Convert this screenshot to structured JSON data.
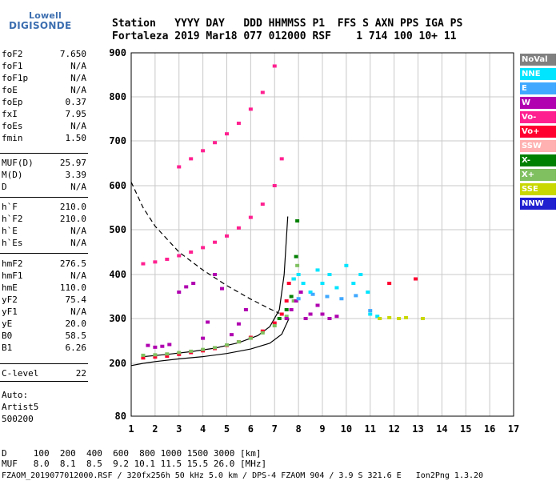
{
  "logo": {
    "line1": "Lowell",
    "line2": "DIGISONDE"
  },
  "header": {
    "line1": "Station   YYYY DAY   DDD HHMMSS P1  FFS S AXN PPS IGA PS",
    "line2": "Fortaleza 2019 Mar18 077 012000 RSF    1 714 100 10+ 11"
  },
  "params_group1": [
    {
      "name": "foF2",
      "value": "7.650"
    },
    {
      "name": "foF1",
      "value": "N/A"
    },
    {
      "name": "foF1p",
      "value": "N/A"
    },
    {
      "name": "foE",
      "value": "N/A"
    },
    {
      "name": "foEp",
      "value": "0.37"
    },
    {
      "name": "fxI",
      "value": "7.95"
    },
    {
      "name": "foEs",
      "value": "N/A"
    },
    {
      "name": "fmin",
      "value": "1.50"
    }
  ],
  "params_group2": [
    {
      "name": "MUF(D)",
      "value": "25.97"
    },
    {
      "name": "M(D)",
      "value": "3.39"
    },
    {
      "name": "D",
      "value": "N/A"
    }
  ],
  "params_group3": [
    {
      "name": "h`F",
      "value": "210.0"
    },
    {
      "name": "h`F2",
      "value": "210.0"
    },
    {
      "name": "h`E",
      "value": "N/A"
    },
    {
      "name": "h`Es",
      "value": "N/A"
    }
  ],
  "params_group4": [
    {
      "name": "hmF2",
      "value": "276.5"
    },
    {
      "name": "hmF1",
      "value": "N/A"
    },
    {
      "name": "hmE",
      "value": "110.0"
    },
    {
      "name": "yF2",
      "value": "75.4"
    },
    {
      "name": "yF1",
      "value": "N/A"
    },
    {
      "name": "yE",
      "value": "20.0"
    },
    {
      "name": "B0",
      "value": "58.5"
    },
    {
      "name": "B1",
      "value": "6.26"
    }
  ],
  "params_group5": [
    {
      "name": "C-level",
      "value": "22"
    }
  ],
  "auto": {
    "line1": "Auto:",
    "line2": "Artist5",
    "line3": "500200"
  },
  "bottom": {
    "d_line": "D     100  200  400  600  800 1000 1500 3000 [km]",
    "muf_line": "MUF   8.0  8.1  8.5  9.2 10.1 11.5 15.5 26.0 [MHz]",
    "footer": "FZAOM_2019077012000.RSF / 320fx256h 50 kHz 5.0 km / DPS-4 FZAOM 904 / 3.9 S 321.6 E   Ion2Png 1.3.20"
  },
  "legend": [
    {
      "label": "NoVal",
      "color": "#808080",
      "text": "#ffffff"
    },
    {
      "label": "NNE",
      "color": "#00e5ff",
      "text": "#ffffff"
    },
    {
      "label": "E",
      "color": "#40a8ff",
      "text": "#ffffff"
    },
    {
      "label": "W",
      "color": "#b000b0",
      "text": "#ffffff"
    },
    {
      "label": "Vo-",
      "color": "#ff2090",
      "text": "#ffffff"
    },
    {
      "label": "Vo+",
      "color": "#ff0030",
      "text": "#ffffff"
    },
    {
      "label": "SSW",
      "color": "#ffb0b0",
      "text": "#ffffff"
    },
    {
      "label": "X-",
      "color": "#008000",
      "text": "#ffffff"
    },
    {
      "label": "X+",
      "color": "#80c060",
      "text": "#ffffff"
    },
    {
      "label": "SSE",
      "color": "#c8d800",
      "text": "#ffffff"
    },
    {
      "label": "NNW",
      "color": "#2020d0",
      "text": "#ffffff"
    }
  ],
  "chart_data": {
    "type": "scatter",
    "xlabel": "",
    "ylabel": "",
    "xlim": [
      1,
      17
    ],
    "ylim": [
      80,
      900
    ],
    "x_ticks": [
      1,
      2,
      3,
      4,
      5,
      6,
      7,
      8,
      9,
      10,
      11,
      12,
      13,
      14,
      15,
      16,
      17
    ],
    "y_ticks": [
      80,
      200,
      300,
      400,
      500,
      600,
      700,
      800,
      900
    ],
    "x_tick_labels": [
      "1",
      "2",
      "3",
      "4",
      "5",
      "6",
      "7",
      "8",
      "9",
      "10",
      "11",
      "12",
      "13",
      "14",
      "15",
      "16",
      "17"
    ],
    "y_tick_labels": [
      "80",
      "200",
      "300",
      "400",
      "500",
      "600",
      "700",
      "800",
      "900"
    ],
    "grid": true,
    "series": [
      {
        "name": "Vo+",
        "color": "#ff0030",
        "x": [
          1.5,
          2.0,
          2.5,
          3.0,
          3.5,
          4.0,
          4.5,
          5.0,
          5.5,
          6.0,
          6.5,
          7.0,
          7.3,
          7.5,
          7.6
        ],
        "y": [
          212,
          214,
          216,
          220,
          224,
          228,
          233,
          240,
          248,
          258,
          272,
          290,
          310,
          340,
          380
        ]
      },
      {
        "name": "X+",
        "color": "#80c060",
        "x": [
          1.5,
          2.0,
          2.5,
          3.0,
          3.5,
          4.0,
          4.5,
          5.0,
          5.5,
          6.0,
          6.5,
          7.0,
          7.5,
          7.8,
          7.95
        ],
        "y": [
          218,
          219,
          221,
          224,
          227,
          231,
          235,
          241,
          248,
          256,
          268,
          284,
          305,
          340,
          420
        ]
      },
      {
        "name": "X-",
        "color": "#008000",
        "x": [
          7.2,
          7.5,
          7.7,
          7.8,
          7.9,
          7.95
        ],
        "y": [
          300,
          320,
          350,
          390,
          440,
          520
        ]
      },
      {
        "name": "Vo- (2nd hop)",
        "color": "#ff2090",
        "x": [
          1.5,
          2.0,
          2.5,
          3.0,
          3.5,
          4.0,
          4.5,
          5.0,
          5.5,
          6.0,
          6.5,
          7.0,
          7.3
        ],
        "y": [
          424,
          428,
          434,
          442,
          450,
          460,
          472,
          486,
          504,
          528,
          558,
          600,
          660
        ]
      },
      {
        "name": "Vo- (3rd hop)",
        "color": "#ff2090",
        "x": [
          3.0,
          3.5,
          4.0,
          4.5,
          5.0,
          5.5,
          6.0,
          6.5,
          7.0
        ],
        "y": [
          642,
          660,
          678,
          696,
          716,
          740,
          772,
          810,
          870
        ]
      },
      {
        "name": "W",
        "color": "#b000b0",
        "x": [
          1.7,
          2.0,
          2.3,
          2.6,
          3.0,
          3.3,
          3.6,
          4.0,
          4.2,
          4.5,
          4.8,
          5.2,
          5.5,
          5.8,
          7.5,
          7.7,
          7.9,
          8.1,
          8.3,
          8.5,
          8.8,
          9.0,
          9.3,
          9.6
        ],
        "y": [
          240,
          236,
          238,
          242,
          360,
          372,
          380,
          256,
          292,
          400,
          368,
          264,
          288,
          320,
          300,
          320,
          340,
          360,
          300,
          310,
          330,
          310,
          300,
          305
        ]
      },
      {
        "name": "NNE",
        "color": "#00e5ff",
        "x": [
          7.8,
          8.0,
          8.2,
          8.5,
          8.8,
          9.0,
          9.3,
          9.6,
          10.0,
          10.3,
          10.6,
          10.9,
          11.0,
          11.3
        ],
        "y": [
          390,
          400,
          380,
          360,
          410,
          380,
          400,
          370,
          420,
          380,
          400,
          360,
          310,
          305
        ]
      },
      {
        "name": "E",
        "color": "#40a8ff",
        "x": [
          8.0,
          8.6,
          9.2,
          9.8,
          10.4,
          11.0
        ],
        "y": [
          345,
          355,
          350,
          345,
          352,
          318
        ]
      },
      {
        "name": "SSE",
        "color": "#c8d800",
        "x": [
          11.4,
          11.8,
          12.2,
          12.5,
          13.2
        ],
        "y": [
          300,
          302,
          300,
          302,
          300
        ]
      },
      {
        "name": "Vo+ (isolated)",
        "color": "#ff0030",
        "x": [
          11.8,
          12.9
        ],
        "y": [
          380,
          390
        ]
      }
    ],
    "profile_curve": {
      "color": "#000000",
      "x": [
        1.0,
        1.5,
        2.0,
        3.0,
        4.0,
        5.0,
        6.0,
        6.8,
        7.3,
        7.6
      ],
      "y": [
        195,
        200,
        204,
        210,
        215,
        222,
        232,
        245,
        265,
        300
      ]
    },
    "profile_curve_upper": {
      "color": "#000000",
      "x": [
        1.5,
        2.5,
        3.5,
        4.5,
        5.5,
        6.3,
        6.8,
        7.2,
        7.4,
        7.55
      ],
      "y": [
        215,
        220,
        226,
        234,
        246,
        262,
        282,
        320,
        400,
        530
      ]
    },
    "dashed_curve": {
      "color": "#000000",
      "x": [
        1.0,
        1.5,
        2.0,
        3.0,
        4.0,
        5.0,
        6.0,
        6.8,
        7.2
      ],
      "y": [
        608,
        550,
        508,
        450,
        410,
        375,
        344,
        322,
        312
      ]
    }
  }
}
